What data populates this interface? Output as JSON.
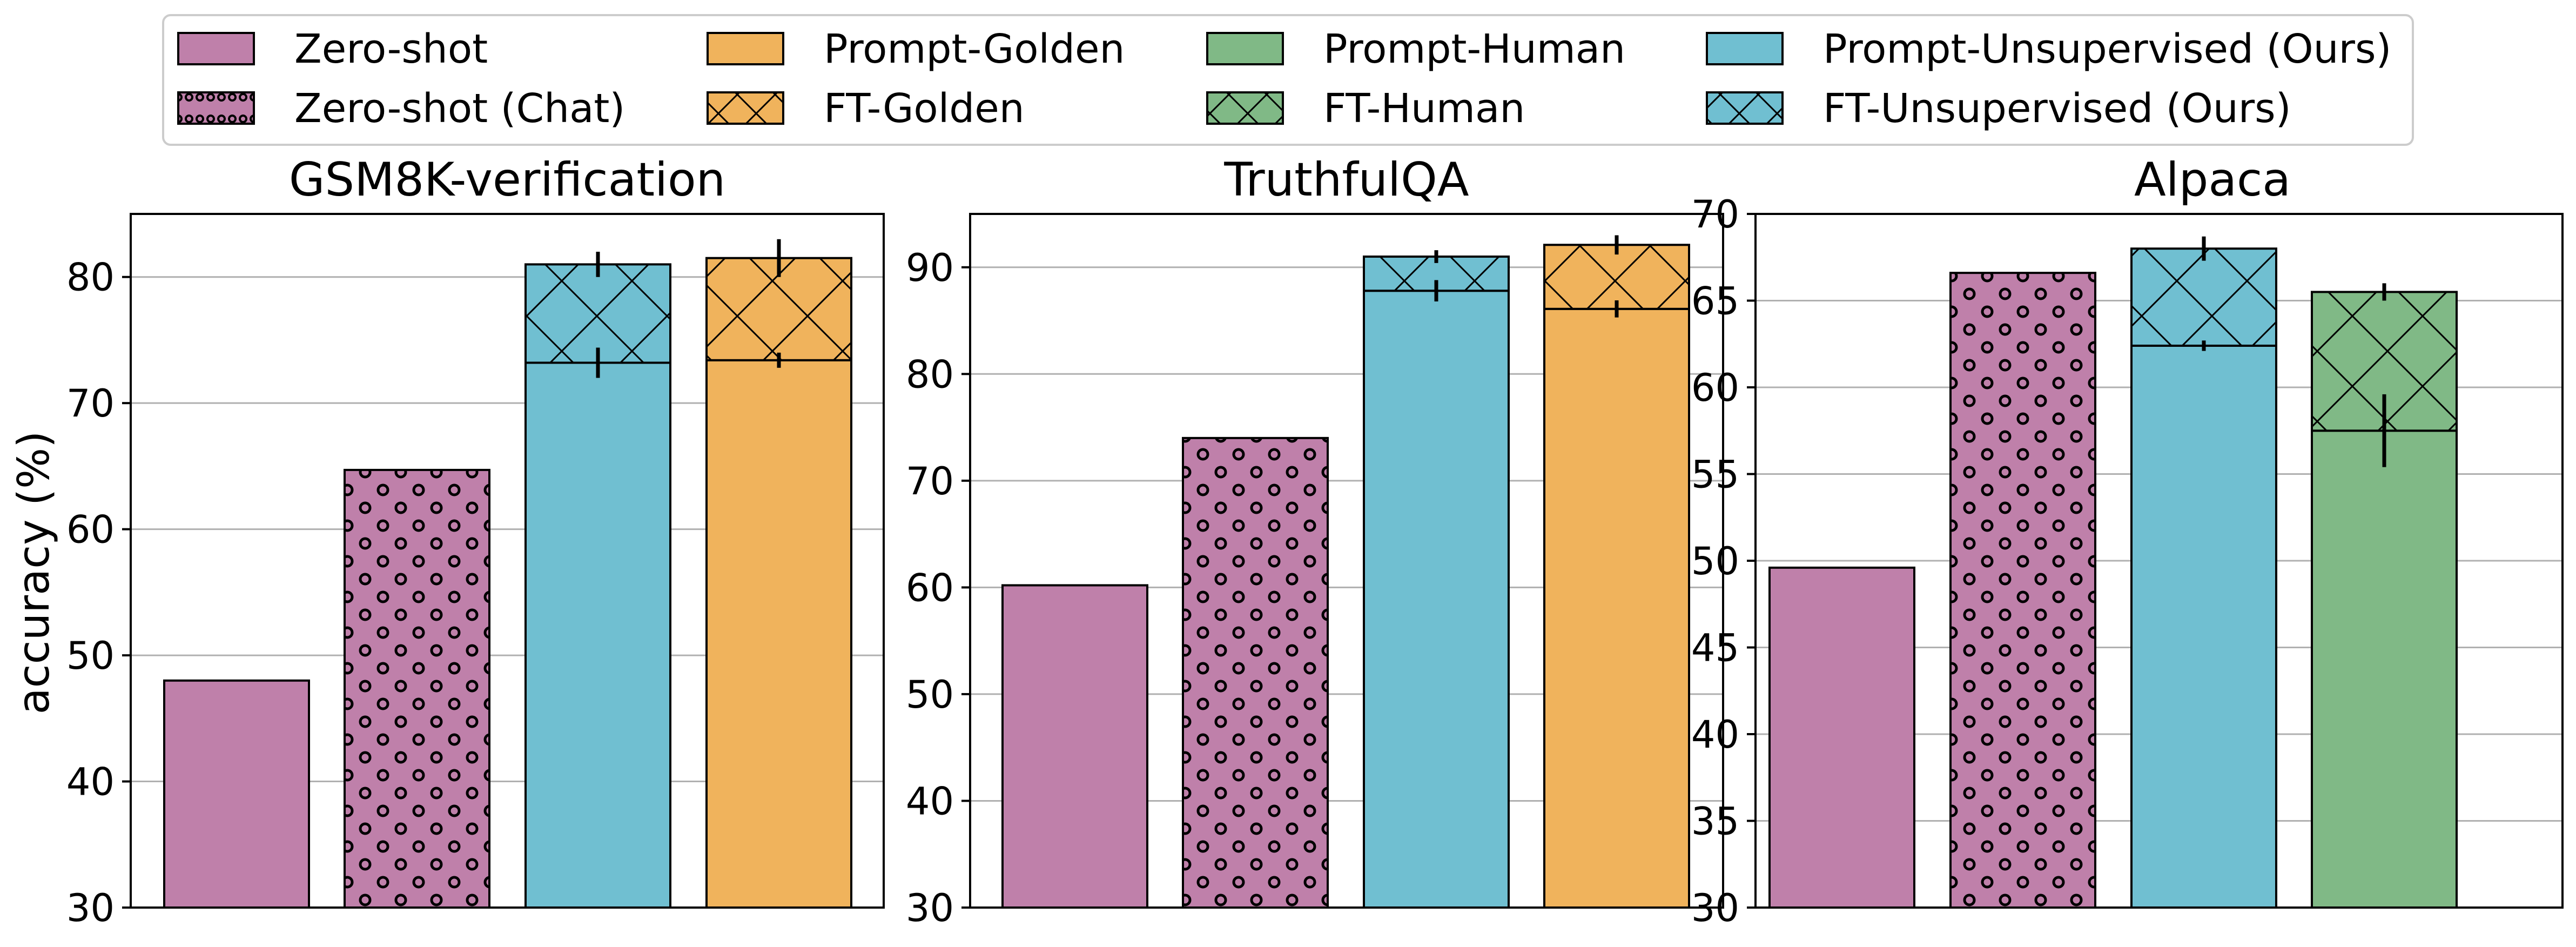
{
  "ylabel": "accuracy (%)",
  "legend": {
    "placement": "top-center",
    "entries": [
      {
        "label": "Zero-shot",
        "color": "#bf80aa",
        "hatch": "none"
      },
      {
        "label": "Zero-shot (Chat)",
        "color": "#bf80aa",
        "hatch": "circles"
      },
      {
        "label": "Prompt-Golden",
        "color": "#f0b35c",
        "hatch": "none"
      },
      {
        "label": "FT-Golden",
        "color": "#f0b35c",
        "hatch": "cross"
      },
      {
        "label": "Prompt-Human",
        "color": "#80b986",
        "hatch": "none"
      },
      {
        "label": "FT-Human",
        "color": "#80b986",
        "hatch": "cross"
      },
      {
        "label": "Prompt-Unsupervised (Ours)",
        "color": "#70bfd1",
        "hatch": "none"
      },
      {
        "label": "FT-Unsupervised (Ours)",
        "color": "#70bfd1",
        "hatch": "cross"
      }
    ]
  },
  "chart_data": [
    {
      "type": "bar",
      "title": "GSM8K-verification",
      "xlabel": "",
      "ylabel": "accuracy (%)",
      "ylim": [
        30,
        85
      ],
      "yticks": [
        30,
        40,
        50,
        60,
        70,
        80
      ],
      "grid": true,
      "bars": [
        {
          "name": "Zero-shot",
          "color": "#bf80aa",
          "hatch": "none",
          "value": 48.0
        },
        {
          "name": "Zero-shot (Chat)",
          "color": "#bf80aa",
          "hatch": "circles",
          "value": 64.7
        },
        {
          "name": "Prompt-Unsupervised (Ours)",
          "color": "#70bfd1",
          "hatch": "none",
          "value": 73.2,
          "err": 1.2,
          "top": {
            "name": "FT-Unsupervised (Ours)",
            "hatch": "cross",
            "value": 81.0,
            "err": 1.0
          }
        },
        {
          "name": "Prompt-Golden",
          "color": "#f0b35c",
          "hatch": "none",
          "value": 73.4,
          "err": 0.6,
          "top": {
            "name": "FT-Golden",
            "hatch": "cross",
            "value": 81.5,
            "err": 1.5
          }
        }
      ]
    },
    {
      "type": "bar",
      "title": "TruthfulQA",
      "xlabel": "",
      "ylabel": "",
      "ylim": [
        30,
        95
      ],
      "yticks": [
        30,
        40,
        50,
        60,
        70,
        80,
        90
      ],
      "grid": true,
      "bars": [
        {
          "name": "Zero-shot",
          "color": "#bf80aa",
          "hatch": "none",
          "value": 60.2
        },
        {
          "name": "Zero-shot (Chat)",
          "color": "#bf80aa",
          "hatch": "circles",
          "value": 74.0
        },
        {
          "name": "Prompt-Unsupervised (Ours)",
          "color": "#70bfd1",
          "hatch": "none",
          "value": 87.8,
          "err": 1.0,
          "top": {
            "name": "FT-Unsupervised (Ours)",
            "hatch": "cross",
            "value": 91.0,
            "err": 0.6
          }
        },
        {
          "name": "Prompt-Golden",
          "color": "#f0b35c",
          "hatch": "none",
          "value": 86.1,
          "err": 0.8,
          "top": {
            "name": "FT-Golden",
            "hatch": "cross",
            "value": 92.1,
            "err": 0.9
          }
        }
      ]
    },
    {
      "type": "bar",
      "title": "Alpaca",
      "xlabel": "",
      "ylabel": "",
      "ylim": [
        30,
        70
      ],
      "yticks": [
        30,
        35,
        40,
        45,
        50,
        55,
        60,
        65,
        70
      ],
      "grid": true,
      "bars": [
        {
          "name": "Zero-shot",
          "color": "#bf80aa",
          "hatch": "none",
          "value": 49.6
        },
        {
          "name": "Zero-shot (Chat)",
          "color": "#bf80aa",
          "hatch": "circles",
          "value": 66.6
        },
        {
          "name": "Prompt-Unsupervised (Ours)",
          "color": "#70bfd1",
          "hatch": "none",
          "value": 62.4,
          "err": 0.3,
          "top": {
            "name": "FT-Unsupervised (Ours)",
            "hatch": "cross",
            "value": 68.0,
            "err": 0.7
          }
        },
        {
          "name": "Prompt-Human",
          "color": "#80b986",
          "hatch": "none",
          "value": 57.5,
          "err": 2.1,
          "top": {
            "name": "FT-Human",
            "hatch": "cross",
            "value": 65.5,
            "err": 0.5
          }
        }
      ]
    }
  ]
}
